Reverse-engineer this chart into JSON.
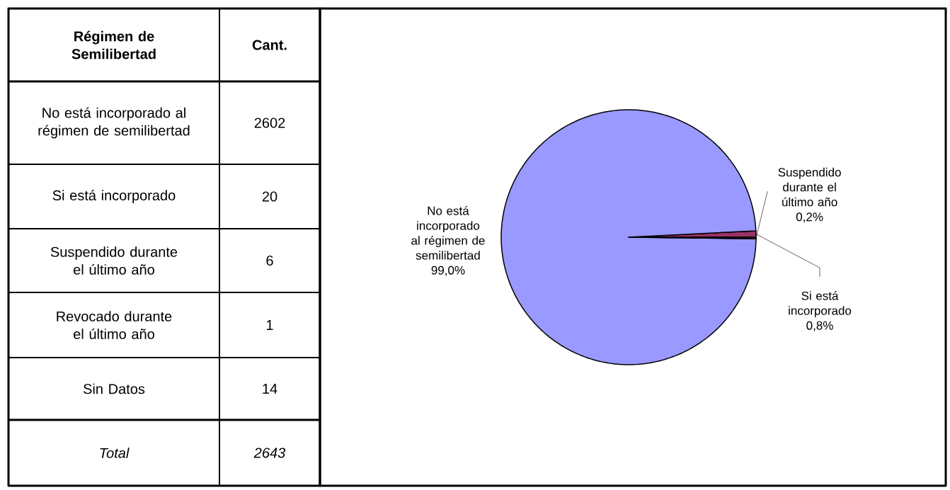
{
  "chart_data": [
    {
      "type": "other",
      "xlabel": "Régimen de Semilibertad",
      "ylabel": "Cant.",
      "categories": [
        "No está incorporado al régimen de semilibertad",
        "Si está incorporado",
        "Suspendido durante el último año",
        "Revocado durante el último año",
        "Sin Datos",
        "Total"
      ],
      "value_labels": [
        "2602",
        "20",
        "6",
        "1",
        "14",
        "2643"
      ]
    },
    {
      "type": "pie",
      "categories": [
        "No está incorporado al régimen de semilibertad",
        "Si está incorporado",
        "Suspendido durante el último año"
      ],
      "values": [
        99.0,
        0.8,
        0.2
      ],
      "value_labels": [
        "99,0%",
        "0,8%",
        "0,2%"
      ],
      "colors": [
        "#9999ff",
        "#993366",
        "#7a1f3d"
      ],
      "legend": false
    }
  ]
}
